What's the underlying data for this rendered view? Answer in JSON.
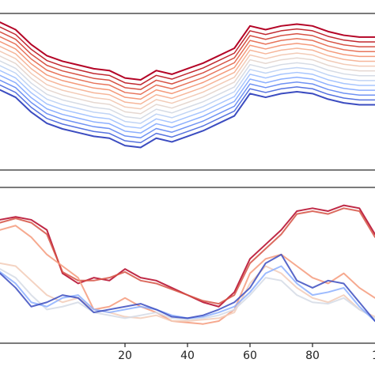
{
  "colors": {
    "background": "#ffffff",
    "frame": "#222222",
    "colormap": "coolwarm",
    "cold_end": "#3b4cc0",
    "mid": "#dddddd",
    "warm_end": "#b40426"
  },
  "chart_data": [
    {
      "type": "line",
      "panel": "top",
      "title": "",
      "xlabel": "",
      "ylabel": "",
      "xlim": [
        -20,
        100
      ],
      "ylim": [
        -2.0,
        2.0
      ],
      "grid": false,
      "legend": "none",
      "tick_labels_visible": false,
      "series_count": 15,
      "offset_step": 0.13,
      "x": [
        -20,
        -15,
        -10,
        -5,
        0,
        5,
        10,
        15,
        20,
        25,
        30,
        35,
        40,
        45,
        50,
        55,
        60,
        65,
        70,
        75,
        80,
        85,
        90,
        95,
        100
      ],
      "base_values": [
        0.05,
        -0.15,
        -0.55,
        -0.85,
        -1.0,
        -1.1,
        -1.2,
        -1.25,
        -1.45,
        -1.5,
        -1.25,
        -1.35,
        -1.2,
        -1.05,
        -0.85,
        -0.65,
        -0.05,
        -0.15,
        -0.05,
        0.0,
        -0.05,
        -0.2,
        -0.3,
        -0.35,
        -0.35
      ],
      "colors": [
        "#3b4cc0",
        "#5572df",
        "#6f92f3",
        "#8caffe",
        "#a7c5fe",
        "#c0d4f5",
        "#d5dbe5",
        "#e5d8d1",
        "#f2cbb7",
        "#f6b69a",
        "#f49a7b",
        "#e7745b",
        "#d65244",
        "#c0282f",
        "#b40426"
      ]
    },
    {
      "type": "line",
      "panel": "bottom",
      "title": "",
      "xlabel": "",
      "ylabel": "",
      "xlim": [
        -20,
        100
      ],
      "ylim": [
        0,
        1
      ],
      "grid": false,
      "legend": "none",
      "xticks": [
        20,
        40,
        60,
        80
      ],
      "x_tick_labels": [
        "20",
        "40",
        "60",
        "80"
      ],
      "x_edge_label_partial": "1",
      "x": [
        -20,
        -15,
        -10,
        -5,
        0,
        5,
        10,
        15,
        20,
        25,
        30,
        35,
        40,
        45,
        50,
        55,
        60,
        65,
        70,
        75,
        80,
        85,
        90,
        95,
        100
      ],
      "series": [
        {
          "color": "#b40426",
          "values": [
            0.82,
            0.84,
            0.82,
            0.75,
            0.45,
            0.38,
            0.42,
            0.4,
            0.48,
            0.42,
            0.4,
            0.35,
            0.3,
            0.25,
            0.22,
            0.32,
            0.55,
            0.65,
            0.75,
            0.88,
            0.9,
            0.88,
            0.92,
            0.9,
            0.72
          ]
        },
        {
          "color": "#d65244",
          "values": [
            0.8,
            0.83,
            0.8,
            0.72,
            0.46,
            0.4,
            0.4,
            0.42,
            0.46,
            0.4,
            0.38,
            0.34,
            0.3,
            0.26,
            0.24,
            0.3,
            0.52,
            0.62,
            0.72,
            0.86,
            0.88,
            0.86,
            0.9,
            0.88,
            0.7
          ]
        },
        {
          "color": "#f49a7b",
          "values": [
            0.75,
            0.78,
            0.7,
            0.58,
            0.5,
            0.42,
            0.2,
            0.22,
            0.28,
            0.22,
            0.18,
            0.12,
            0.11,
            0.1,
            0.12,
            0.2,
            0.45,
            0.55,
            0.58,
            0.5,
            0.42,
            0.38,
            0.45,
            0.35,
            0.28
          ]
        },
        {
          "color": "#f2cbb7",
          "values": [
            0.52,
            0.5,
            0.4,
            0.3,
            0.25,
            0.28,
            0.2,
            0.18,
            0.15,
            0.14,
            0.16,
            0.12,
            0.12,
            0.13,
            0.14,
            0.18,
            0.38,
            0.5,
            0.45,
            0.35,
            0.28,
            0.25,
            0.3,
            0.2,
            0.15
          ]
        },
        {
          "color": "#d5dbe5",
          "values": [
            0.48,
            0.42,
            0.3,
            0.2,
            0.22,
            0.25,
            0.18,
            0.16,
            0.14,
            0.16,
            0.18,
            0.14,
            0.13,
            0.14,
            0.16,
            0.2,
            0.3,
            0.42,
            0.4,
            0.3,
            0.25,
            0.24,
            0.28,
            0.2,
            0.14
          ]
        },
        {
          "color": "#8caffe",
          "values": [
            0.46,
            0.38,
            0.25,
            0.22,
            0.28,
            0.3,
            0.2,
            0.18,
            0.2,
            0.22,
            0.2,
            0.16,
            0.14,
            0.15,
            0.18,
            0.22,
            0.32,
            0.45,
            0.5,
            0.38,
            0.3,
            0.32,
            0.35,
            0.22,
            0.12
          ]
        },
        {
          "color": "#3b4cc0",
          "values": [
            0.45,
            0.35,
            0.22,
            0.25,
            0.3,
            0.28,
            0.18,
            0.2,
            0.22,
            0.24,
            0.2,
            0.15,
            0.14,
            0.16,
            0.2,
            0.25,
            0.35,
            0.52,
            0.58,
            0.4,
            0.35,
            0.4,
            0.38,
            0.25,
            0.12
          ]
        }
      ]
    }
  ]
}
